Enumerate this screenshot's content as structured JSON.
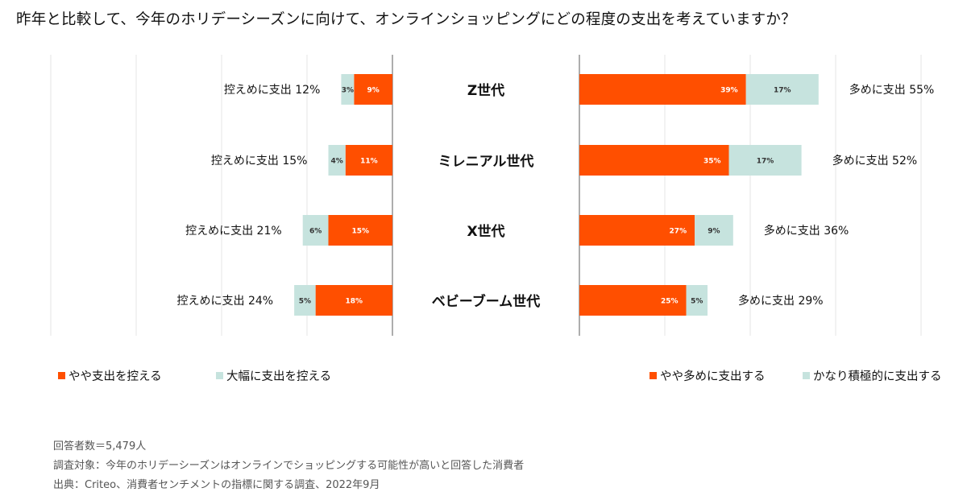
{
  "title": "昨年と比較して、今年のホリデーシーズンに向けて、オンラインショッピングにどの程度の支出を考えていますか？",
  "colors": {
    "orange": "#ff4f00",
    "teal": "#c6e3de",
    "axis": "#777777",
    "grid": "#e6e6e6"
  },
  "legend": {
    "left": [
      {
        "label": "やや支出を控える",
        "color": "#ff4f00"
      },
      {
        "label": "大幅に支出を控える",
        "color": "#c6e3de"
      }
    ],
    "right": [
      {
        "label": "やや多めに支出する",
        "color": "#ff4f00"
      },
      {
        "label": "かなり積極的に支出する",
        "color": "#c6e3de"
      }
    ]
  },
  "footnotes": [
    "回答者数＝5,479人",
    "調査対象：今年のホリデーシーズンはオンラインでショッピングする可能性が高いと回答した消費者",
    "出典：Criteo、消費者センチメントの指標に関する調査、2022年9月"
  ],
  "chart_data": {
    "type": "bar",
    "orientation": "horizontal-diverging",
    "categories": [
      "Z世代",
      "ミレニアル世代",
      "X世代",
      "ベビーブーム世代"
    ],
    "left_panel": {
      "series": [
        {
          "name": "やや支出を控える",
          "values": [
            9,
            11,
            15,
            18
          ],
          "labels": [
            "9%",
            "11%",
            "15%",
            "18%"
          ]
        },
        {
          "name": "大幅に支出を控える",
          "values": [
            3,
            4,
            6,
            5
          ],
          "labels": [
            "3%",
            "4%",
            "6%",
            "5%"
          ]
        }
      ],
      "totals": [
        "控えめに支出 12%",
        "控えめに支出 15%",
        "控えめに支出 21%",
        "控えめに支出 24%"
      ]
    },
    "right_panel": {
      "series": [
        {
          "name": "やや多めに支出する",
          "values": [
            39,
            35,
            27,
            25
          ],
          "labels": [
            "39%",
            "35%",
            "27%",
            "25%"
          ]
        },
        {
          "name": "かなり積極的に支出する",
          "values": [
            17,
            17,
            9,
            5
          ],
          "labels": [
            "17%",
            "17%",
            "9%",
            "5%"
          ]
        }
      ],
      "totals": [
        "多めに支出 55%",
        "多めに支出 52%",
        "多めに支出 36%",
        "多めに支出 29%"
      ]
    },
    "grid": true
  }
}
